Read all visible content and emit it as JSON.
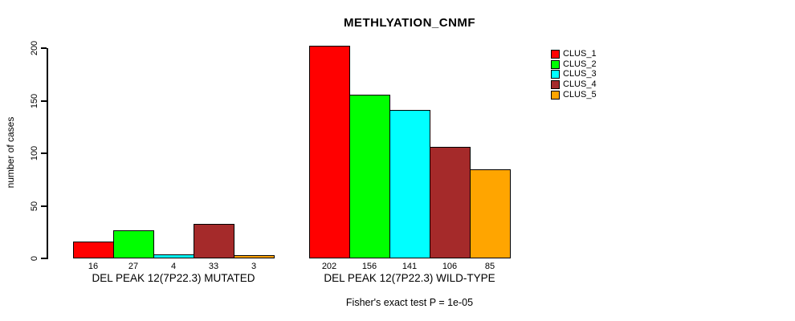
{
  "chart_data": {
    "type": "bar",
    "title": "METHLYATION_CNMF",
    "ylabel": "number of cases",
    "footnote": "Fisher's exact test P = 1e-05",
    "yticks": [
      0,
      50,
      100,
      150,
      200
    ],
    "ylim": [
      0,
      210
    ],
    "grid": false,
    "legend_position": "right",
    "series": [
      {
        "name": "CLUS_1",
        "color": "#FF0000"
      },
      {
        "name": "CLUS_2",
        "color": "#00FF00"
      },
      {
        "name": "CLUS_3",
        "color": "#00FFFF"
      },
      {
        "name": "CLUS_4",
        "color": "#A52A2A"
      },
      {
        "name": "CLUS_5",
        "color": "#FFA500"
      }
    ],
    "groups": [
      {
        "label": "DEL PEAK 12(7P22.3) MUTATED",
        "values": [
          16,
          27,
          4,
          33,
          3
        ]
      },
      {
        "label": "DEL PEAK 12(7P22.3) WILD-TYPE",
        "values": [
          202,
          156,
          141,
          106,
          85
        ]
      }
    ],
    "bar_value_labels_shown": true
  }
}
